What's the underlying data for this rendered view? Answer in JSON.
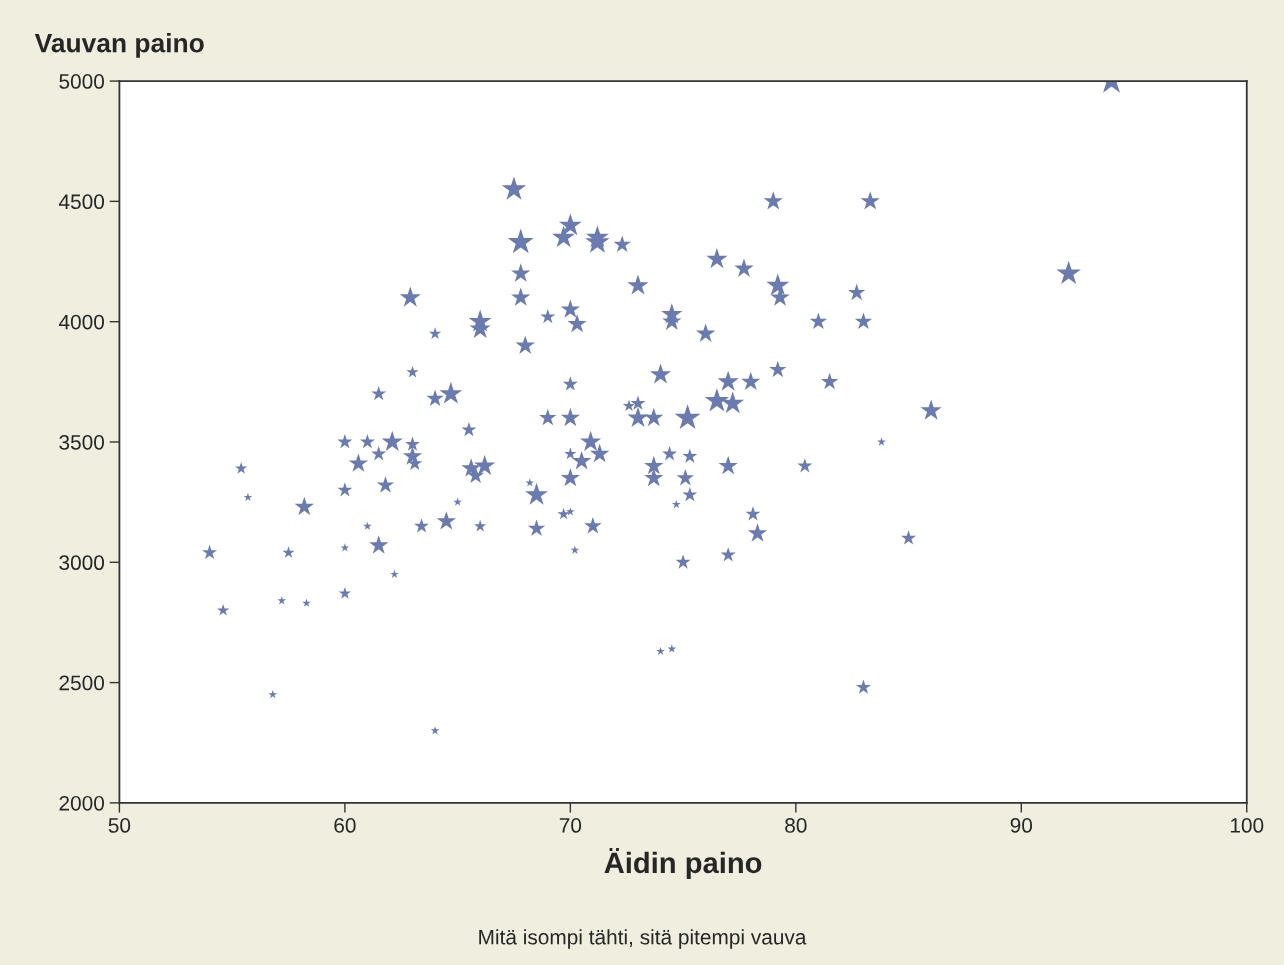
{
  "chart_data": {
    "type": "bubble",
    "ylabel": "Vauvan paino",
    "xlabel": "Äidin paino",
    "annotations": [
      "Mitä isompi tähti, sitä pitempi vauva"
    ],
    "marker": "star",
    "grid": false,
    "legend": false,
    "xlim": [
      50,
      100
    ],
    "xticks": [
      50,
      60,
      70,
      80,
      90,
      100
    ],
    "ylim": [
      2000,
      5000
    ],
    "yticks": [
      2000,
      2500,
      3000,
      3500,
      4000,
      4500,
      5000
    ],
    "series": [
      {
        "color": "#6a7bb0",
        "x": [
          94,
          67.5,
          67.8,
          70,
          69.7,
          71.2,
          71.2,
          72.3,
          67.8,
          67.8,
          68,
          62.9,
          66,
          66,
          64,
          69,
          70,
          70.3,
          73,
          74.5,
          74.5,
          76,
          76.5,
          77.7,
          79,
          83.3,
          79.2,
          79.3,
          82.7,
          81,
          83,
          92.1,
          79.2,
          81.5,
          78,
          77,
          74,
          70,
          76.5,
          77.2,
          75.2,
          73,
          73.7,
          73,
          72.6,
          86,
          83.8,
          64.7,
          64,
          61.5,
          63,
          60,
          61,
          62.1,
          63,
          63,
          63.1,
          61.5,
          60.6,
          61.8,
          60,
          58.2,
          55.4,
          55.7,
          54,
          54.6,
          57.5,
          57.2,
          58.3,
          60,
          61.5,
          60,
          61,
          62.2,
          63.4,
          64.5,
          65,
          65.5,
          65.6,
          65.8,
          66.2,
          66,
          56.8,
          64,
          68.2,
          68.5,
          68.5,
          69,
          69.7,
          70,
          70,
          70,
          70.2,
          70.5,
          70.9,
          71.3,
          71,
          70,
          73.7,
          73.7,
          74.4,
          75.3,
          75.1,
          74.7,
          75.3,
          75,
          74,
          74.5,
          77,
          77,
          78.1,
          78.3,
          80.4,
          83,
          85
        ],
        "values": [
          5000,
          4550,
          4330,
          4400,
          4350,
          4330,
          4350,
          4320,
          4200,
          4100,
          3900,
          4100,
          4000,
          3970,
          3950,
          4020,
          4050,
          3990,
          4150,
          4030,
          4000,
          3950,
          4260,
          4220,
          4500,
          4500,
          4150,
          4100,
          4120,
          4000,
          4000,
          4200,
          3800,
          3750,
          3750,
          3750,
          3780,
          3740,
          3670,
          3660,
          3600,
          3600,
          3600,
          3660,
          3650,
          3630,
          3500,
          3700,
          3680,
          3700,
          3790,
          3500,
          3500,
          3500,
          3490,
          3440,
          3410,
          3450,
          3410,
          3320,
          3300,
          3230,
          3390,
          3270,
          3040,
          2800,
          3040,
          2840,
          2830,
          3060,
          3070,
          2870,
          3150,
          2950,
          3150,
          3170,
          3250,
          3550,
          3390,
          3360,
          3400,
          3150,
          2450,
          2300,
          3330,
          3280,
          3140,
          3600,
          3200,
          3350,
          3450,
          3600,
          3050,
          3420,
          3500,
          3450,
          3150,
          3210,
          3400,
          3350,
          3450,
          3440,
          3350,
          3240,
          3280,
          3000,
          2630,
          2640,
          3400,
          3030,
          3200,
          3120,
          3400,
          2480,
          3100
        ],
        "sizes": [
          1,
          0.8,
          0.9,
          0.7,
          0.7,
          0.8,
          0.7,
          0.4,
          0.5,
          0.5,
          0.5,
          0.6,
          0.7,
          0.6,
          0.2,
          0.3,
          0.5,
          0.5,
          0.6,
          0.6,
          0.5,
          0.5,
          0.6,
          0.5,
          0.5,
          0.5,
          0.7,
          0.5,
          0.4,
          0.4,
          0.4,
          0.8,
          0.4,
          0.4,
          0.5,
          0.6,
          0.6,
          0.3,
          0.8,
          0.7,
          0.9,
          0.6,
          0.5,
          0.3,
          0.2,
          0.6,
          0.1,
          0.7,
          0.4,
          0.3,
          0.2,
          0.3,
          0.3,
          0.6,
          0.3,
          0.5,
          0.3,
          0.3,
          0.5,
          0.4,
          0.3,
          0.5,
          0.2,
          0.1,
          0.3,
          0.2,
          0.2,
          0.1,
          0.1,
          0.1,
          0.5,
          0.2,
          0.1,
          0.1,
          0.3,
          0.5,
          0.1,
          0.3,
          0.5,
          0.4,
          0.6,
          0.2,
          0.1,
          0.1,
          0.1,
          0.7,
          0.4,
          0.4,
          0.2,
          0.5,
          0.2,
          0.5,
          0.1,
          0.5,
          0.6,
          0.5,
          0.4,
          0.1,
          0.5,
          0.5,
          0.3,
          0.3,
          0.4,
          0.1,
          0.3,
          0.3,
          0.1,
          0.1,
          0.5,
          0.3,
          0.3,
          0.5,
          0.3,
          0.3,
          0.3
        ]
      }
    ]
  }
}
